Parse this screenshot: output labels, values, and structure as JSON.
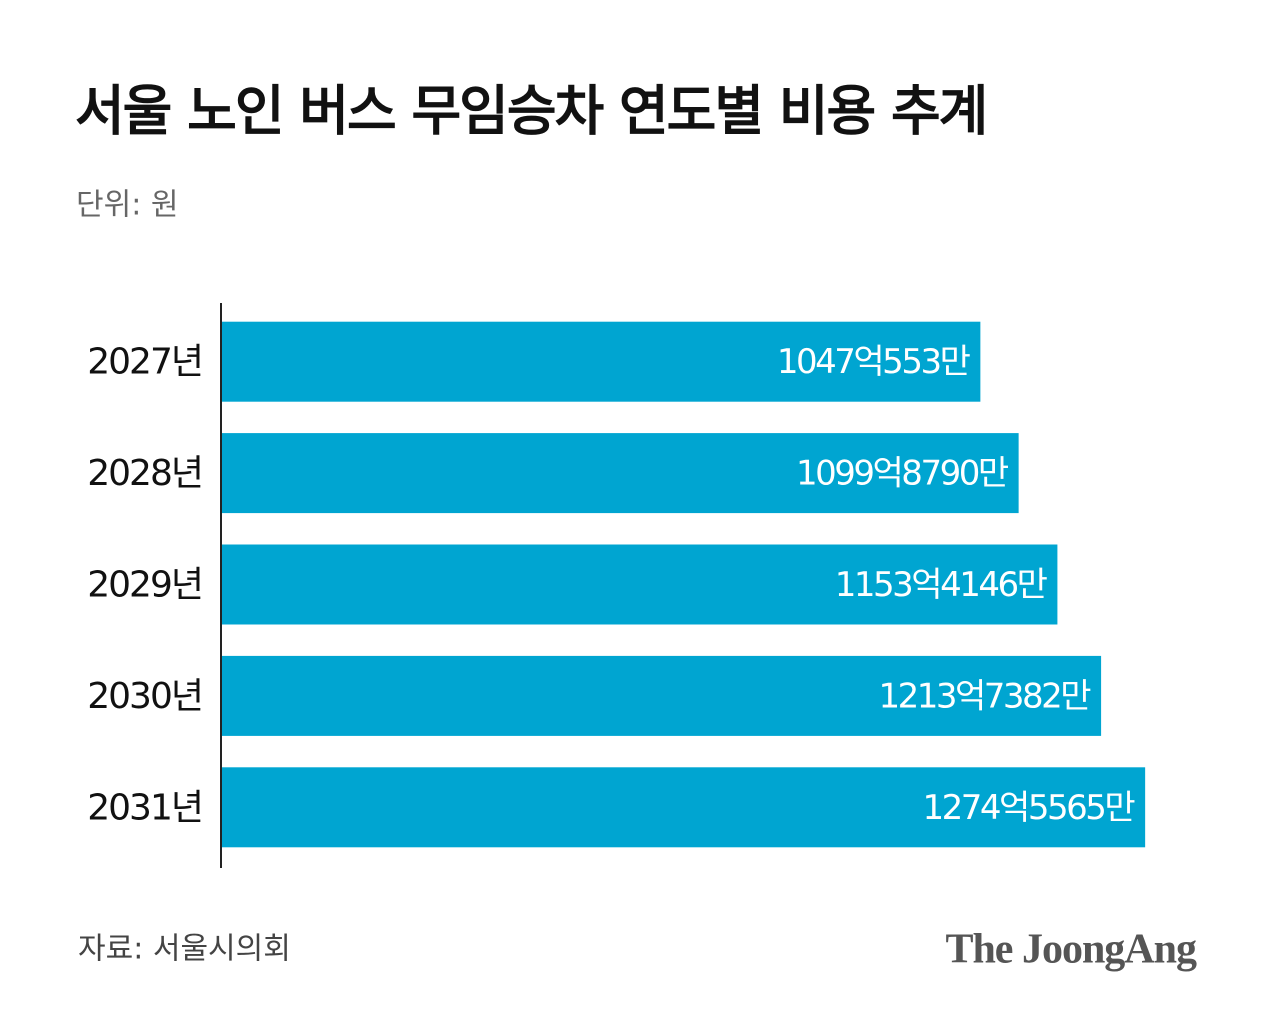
{
  "chart_data": {
    "type": "barh",
    "title": "서울 노인 버스 무임승차 연도별 비용 추계",
    "unit": "단위: 원",
    "source": "자료: 서울시의회",
    "brand": "The JoongAng",
    "categories": [
      "2027년",
      "2028년",
      "2029년",
      "2030년",
      "2031년"
    ],
    "values": [
      104705530000,
      109987900000,
      115341460000,
      121373820000,
      127455650000
    ],
    "value_labels": [
      "1047억553만",
      "1099억8790만",
      "1153억4146만",
      "1213억7382만",
      "1274억5565만"
    ],
    "color": "#00a5d1",
    "xlim": [
      0,
      140000000000
    ]
  }
}
